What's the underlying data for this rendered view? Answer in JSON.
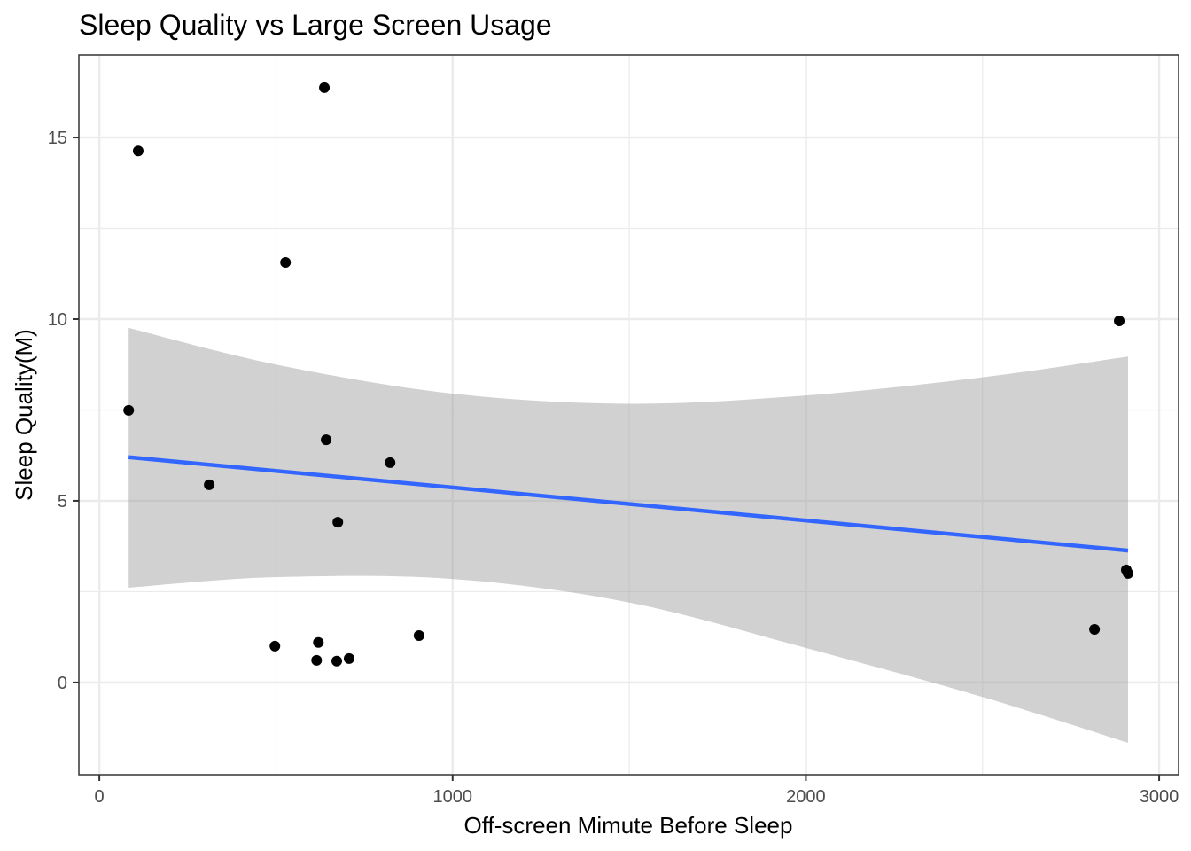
{
  "chart_data": {
    "type": "scatter",
    "title": "Sleep Quality vs Large Screen Usage",
    "xlabel": "Off-screen Mimute Before Sleep",
    "ylabel": "Sleep Quality(M)",
    "xlim": [
      -58,
      3055
    ],
    "ylim": [
      -2.54,
      17.27
    ],
    "grid": true,
    "legend": "none",
    "x_ticks": [
      0,
      1000,
      2000,
      3000
    ],
    "x_tick_labels": [
      "0",
      "1000",
      "2000",
      "3000"
    ],
    "x_minor": [
      500,
      1500,
      2500
    ],
    "y_ticks": [
      0,
      5,
      10,
      15
    ],
    "y_tick_labels": [
      "0",
      "5",
      "10",
      "15"
    ],
    "y_minor": [
      2.5,
      7.5,
      12.5
    ],
    "colors": {
      "points": "#000000",
      "line": "#3366ff",
      "ribbon": "#999999",
      "grid": "#ebebeb",
      "border": "#333333"
    },
    "points": [
      {
        "x": 110,
        "y": 14.63
      },
      {
        "x": 637,
        "y": 16.37
      },
      {
        "x": 527,
        "y": 11.56
      },
      {
        "x": 2887,
        "y": 9.95
      },
      {
        "x": 83,
        "y": 7.49
      },
      {
        "x": 642,
        "y": 6.68
      },
      {
        "x": 823,
        "y": 6.05
      },
      {
        "x": 311,
        "y": 5.44
      },
      {
        "x": 675,
        "y": 4.41
      },
      {
        "x": 2907,
        "y": 3.1
      },
      {
        "x": 2912,
        "y": 3.0
      },
      {
        "x": 2817,
        "y": 1.46
      },
      {
        "x": 497,
        "y": 1.0
      },
      {
        "x": 620,
        "y": 1.1
      },
      {
        "x": 905,
        "y": 1.29
      },
      {
        "x": 615,
        "y": 0.61
      },
      {
        "x": 672,
        "y": 0.59
      },
      {
        "x": 707,
        "y": 0.66
      }
    ],
    "trend": {
      "method": "lm",
      "x": [
        83,
        2912
      ],
      "y": [
        6.2,
        3.63
      ]
    },
    "confidence_band": {
      "x": [
        83,
        500,
        1000,
        1500,
        2000,
        2500,
        2912
      ],
      "upper": [
        9.76,
        8.75,
        7.95,
        7.67,
        7.9,
        8.4,
        8.97
      ],
      "lower": [
        2.61,
        2.9,
        2.85,
        2.2,
        0.95,
        -0.4,
        -1.66
      ]
    }
  }
}
